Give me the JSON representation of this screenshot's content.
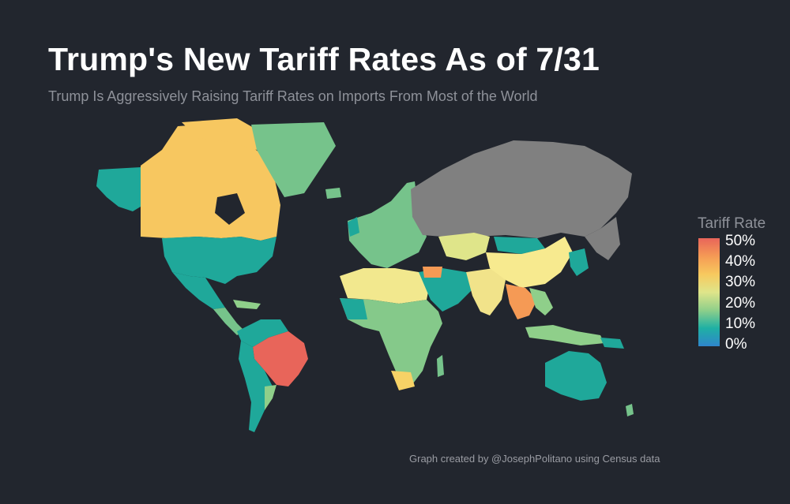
{
  "header": {
    "title": "Trump's New Tariff Rates As of 7/31",
    "subtitle": "Trump Is Aggressively Raising Tariff Rates on Imports From Most of the World"
  },
  "legend": {
    "title": "Tariff Rate",
    "ticks": [
      "50%",
      "40%",
      "30%",
      "20%",
      "10%",
      "0%"
    ],
    "scale_min": 0,
    "scale_max": 50,
    "gradient_colors": [
      "#e8655a",
      "#f59a55",
      "#f7c95e",
      "#dfe58a",
      "#8fcf8a",
      "#1fb0a4",
      "#2f85cc"
    ]
  },
  "map": {
    "projection": "world choropleth",
    "no_data_color": "#808080",
    "regions": [
      {
        "id": "canada",
        "rate": 35,
        "color": "#f7c760"
      },
      {
        "id": "alaska",
        "rate": 10,
        "color": "#1fa89a"
      },
      {
        "id": "usa",
        "rate": 10,
        "color": "#1fa89a"
      },
      {
        "id": "mexico",
        "rate": 10,
        "color": "#1fa89a"
      },
      {
        "id": "greenland",
        "rate": 15,
        "color": "#76c38b"
      },
      {
        "id": "brazil",
        "rate": 50,
        "color": "#e8655a"
      },
      {
        "id": "south-america",
        "rate": 10,
        "color": "#1fa89a"
      },
      {
        "id": "russia",
        "rate": null,
        "color": "#808080"
      },
      {
        "id": "europe",
        "rate": 15,
        "color": "#76c38b"
      },
      {
        "id": "north-africa",
        "rate": 25,
        "color": "#f2e88e"
      },
      {
        "id": "africa",
        "rate": 15,
        "color": "#85c98a"
      },
      {
        "id": "south-africa",
        "rate": 30,
        "color": "#f7d266"
      },
      {
        "id": "middle-east",
        "rate": 10,
        "color": "#1fa89a"
      },
      {
        "id": "kazakhstan",
        "rate": 25,
        "color": "#dfe58a"
      },
      {
        "id": "china",
        "rate": 30,
        "color": "#f7ea8f"
      },
      {
        "id": "india",
        "rate": 25,
        "color": "#f1e38a"
      },
      {
        "id": "southeast-asia",
        "rate": 40,
        "color": "#f59a55"
      },
      {
        "id": "australia",
        "rate": 10,
        "color": "#1fa89a"
      },
      {
        "id": "indonesia",
        "rate": 19,
        "color": "#8fcf8a"
      }
    ]
  },
  "footer": {
    "caption": "Graph created by @JosephPolitano using Census data"
  }
}
